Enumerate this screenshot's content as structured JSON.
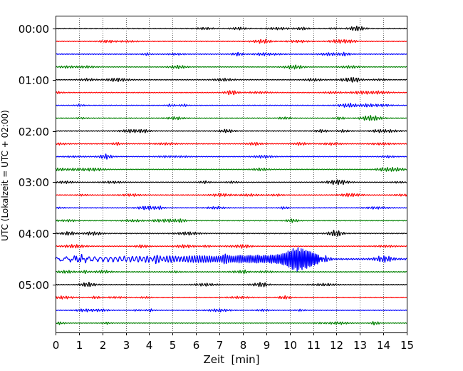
{
  "chart_data": {
    "type": "line",
    "title": "",
    "xlabel": "Zeit  [min]",
    "ylabel": "UTC (Lokalzeit = UTC + 02:00)",
    "xlim": [
      0,
      15
    ],
    "x_ticks": [
      0,
      1,
      2,
      3,
      4,
      5,
      6,
      7,
      8,
      9,
      10,
      11,
      12,
      13,
      14,
      15
    ],
    "y_tick_labels": [
      "00:00",
      "01:00",
      "02:00",
      "03:00",
      "04:00",
      "05:00"
    ],
    "row_minutes": 15,
    "colors": [
      "#000000",
      "#ff0000",
      "#0000ff",
      "#008000"
    ],
    "grid": "vertical dotted at each minute",
    "rows": [
      {
        "start": "00:00",
        "color": "#000000",
        "amp": 0.12
      },
      {
        "start": "00:15",
        "color": "#ff0000",
        "amp": 0.12
      },
      {
        "start": "00:30",
        "color": "#0000ff",
        "amp": 0.12
      },
      {
        "start": "00:45",
        "color": "#008000",
        "amp": 0.1
      },
      {
        "start": "01:00",
        "color": "#000000",
        "amp": 0.12
      },
      {
        "start": "01:15",
        "color": "#ff0000",
        "amp": 0.12
      },
      {
        "start": "01:30",
        "color": "#0000ff",
        "amp": 0.11
      },
      {
        "start": "01:45",
        "color": "#008000",
        "amp": 0.12
      },
      {
        "start": "02:00",
        "color": "#000000",
        "amp": 0.12
      },
      {
        "start": "02:15",
        "color": "#ff0000",
        "amp": 0.12
      },
      {
        "start": "02:30",
        "color": "#0000ff",
        "amp": 0.11
      },
      {
        "start": "02:45",
        "color": "#008000",
        "amp": 0.11
      },
      {
        "start": "03:00",
        "color": "#000000",
        "amp": 0.1
      },
      {
        "start": "03:15",
        "color": "#ff0000",
        "amp": 0.12
      },
      {
        "start": "03:30",
        "color": "#0000ff",
        "amp": 0.1
      },
      {
        "start": "03:45",
        "color": "#008000",
        "amp": 0.11
      },
      {
        "start": "04:00",
        "color": "#000000",
        "amp": 0.13
      },
      {
        "start": "04:15",
        "color": "#ff0000",
        "amp": 0.12
      },
      {
        "start": "04:30",
        "color": "#0000ff",
        "amp": 0.22,
        "event": {
          "from": 6.0,
          "peak": 10.4,
          "to": 11.2,
          "peak_amp": 0.95
        }
      },
      {
        "start": "04:45",
        "color": "#008000",
        "amp": 0.12
      },
      {
        "start": "05:00",
        "color": "#000000",
        "amp": 0.11
      },
      {
        "start": "05:15",
        "color": "#ff0000",
        "amp": 0.11
      },
      {
        "start": "05:30",
        "color": "#0000ff",
        "amp": 0.11
      },
      {
        "start": "05:45",
        "color": "#008000",
        "amp": 0.1
      }
    ]
  }
}
